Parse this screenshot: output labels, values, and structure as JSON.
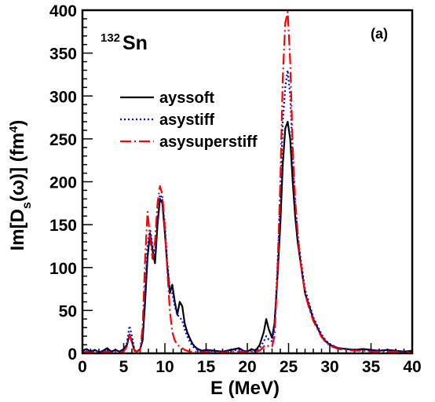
{
  "chart_data": {
    "type": "line",
    "panel_label": "(a)",
    "nucleus": {
      "mass_number": "132",
      "symbol": "Sn"
    },
    "xlabel": "E (MeV)",
    "ylabel_parts": {
      "prefix": "Im[D",
      "sub": "s",
      "mid": "(ω)] (fm",
      "sup": "4",
      "suffix": ")"
    },
    "xlim": [
      0,
      40
    ],
    "ylim": [
      0,
      400
    ],
    "xticks": [
      "0",
      "5",
      "10",
      "15",
      "20",
      "25",
      "30",
      "35",
      "40"
    ],
    "yticks": [
      "0",
      "50",
      "100",
      "150",
      "200",
      "250",
      "300",
      "350",
      "400"
    ],
    "legend_position": "upper-left",
    "series": [
      {
        "name": "ayssoft",
        "color": "#000000",
        "dash": "solid",
        "x": [
          0,
          0.5,
          1,
          1.5,
          2,
          2.5,
          3,
          3.5,
          4,
          4.5,
          5,
          5.4,
          5.7,
          6,
          6.3,
          6.6,
          7,
          7.3,
          7.6,
          7.9,
          8.2,
          8.5,
          8.8,
          9.1,
          9.4,
          9.7,
          10,
          10.3,
          10.6,
          10.9,
          11.2,
          11.5,
          11.8,
          12.1,
          12.4,
          12.7,
          13,
          13.3,
          13.6,
          14,
          14.5,
          15,
          16,
          17,
          18,
          19,
          19.5,
          20,
          20.5,
          21,
          21.5,
          22,
          22.3,
          22.6,
          23,
          23.3,
          23.6,
          24,
          24.3,
          24.6,
          24.9,
          25.2,
          25.5,
          25.8,
          26.1,
          26.4,
          26.7,
          27,
          27.5,
          28,
          28.5,
          29,
          29.5,
          30,
          31,
          32,
          33,
          34,
          35,
          36,
          37,
          38,
          39,
          40
        ],
        "y": [
          3,
          5,
          2,
          4,
          1,
          3,
          6,
          2,
          4,
          2,
          5,
          10,
          22,
          14,
          3,
          2,
          5,
          15,
          60,
          112,
          140,
          120,
          105,
          150,
          180,
          175,
          140,
          100,
          70,
          80,
          60,
          45,
          60,
          55,
          35,
          25,
          18,
          12,
          8,
          5,
          3,
          4,
          3,
          2,
          4,
          6,
          3,
          2,
          5,
          3,
          10,
          25,
          40,
          28,
          18,
          35,
          80,
          150,
          220,
          262,
          270,
          250,
          200,
          160,
          130,
          110,
          90,
          70,
          55,
          40,
          30,
          20,
          14,
          10,
          6,
          5,
          4,
          5,
          4,
          3,
          4,
          3,
          2,
          3
        ]
      },
      {
        "name": "asystiff",
        "color": "#0000ff",
        "dash": "dot",
        "x": [
          0,
          0.5,
          1,
          1.5,
          2,
          2.5,
          3,
          3.5,
          4,
          4.5,
          5,
          5.4,
          5.7,
          6,
          6.3,
          6.6,
          7,
          7.3,
          7.6,
          7.9,
          8.2,
          8.5,
          8.8,
          9.1,
          9.4,
          9.7,
          10,
          10.3,
          10.6,
          10.9,
          11.2,
          11.5,
          11.8,
          12.1,
          12.4,
          12.7,
          13,
          13.3,
          13.6,
          14,
          14.5,
          15,
          16,
          17,
          18,
          19,
          19.5,
          20,
          20.5,
          21,
          21.5,
          22,
          22.3,
          22.6,
          23,
          23.3,
          23.6,
          24,
          24.3,
          24.6,
          24.9,
          25.2,
          25.5,
          25.8,
          26.1,
          26.4,
          26.7,
          27,
          27.5,
          28,
          28.5,
          29,
          29.5,
          30,
          31,
          32,
          33,
          34,
          35,
          36,
          37,
          38,
          39,
          40
        ],
        "y": [
          2,
          4,
          1,
          3,
          2,
          2,
          4,
          1,
          3,
          2,
          4,
          12,
          32,
          20,
          4,
          2,
          4,
          20,
          75,
          125,
          145,
          125,
          115,
          160,
          185,
          180,
          150,
          105,
          75,
          70,
          55,
          45,
          42,
          38,
          28,
          20,
          14,
          9,
          6,
          4,
          2,
          3,
          2,
          2,
          3,
          4,
          3,
          2,
          3,
          2,
          6,
          14,
          20,
          16,
          14,
          30,
          90,
          180,
          270,
          310,
          330,
          300,
          230,
          175,
          140,
          115,
          95,
          75,
          58,
          42,
          32,
          22,
          15,
          11,
          6,
          5,
          4,
          4,
          3,
          3,
          3,
          2,
          2,
          2
        ]
      },
      {
        "name": "asysuperstiff",
        "color": "#ff0000",
        "dash": "dashdot",
        "x": [
          0,
          0.5,
          1,
          1.5,
          2,
          2.5,
          3,
          3.5,
          4,
          4.5,
          5,
          5.4,
          5.7,
          6,
          6.3,
          6.6,
          7,
          7.3,
          7.6,
          7.9,
          8.2,
          8.5,
          8.8,
          9.1,
          9.4,
          9.7,
          10,
          10.3,
          10.6,
          10.9,
          11.2,
          11.5,
          11.8,
          12.1,
          12.4,
          12.7,
          13,
          13.3,
          13.6,
          14,
          14.5,
          15,
          16,
          17,
          18,
          19,
          19.5,
          20,
          20.5,
          21,
          21.5,
          22,
          22.3,
          22.6,
          23,
          23.3,
          23.6,
          24,
          24.3,
          24.6,
          24.9,
          25.2,
          25.5,
          25.8,
          26.1,
          26.4,
          26.7,
          27,
          27.5,
          28,
          28.5,
          29,
          29.5,
          30,
          31,
          32,
          33,
          34,
          35,
          36,
          37,
          38,
          39,
          40
        ],
        "y": [
          1,
          2,
          1,
          2,
          1,
          1,
          2,
          1,
          2,
          1,
          2,
          8,
          22,
          12,
          3,
          2,
          4,
          30,
          110,
          165,
          135,
          110,
          130,
          175,
          195,
          185,
          145,
          95,
          50,
          25,
          15,
          10,
          8,
          6,
          4,
          3,
          2,
          2,
          2,
          2,
          1,
          2,
          1,
          1,
          2,
          2,
          2,
          1,
          2,
          2,
          3,
          8,
          10,
          8,
          8,
          20,
          80,
          200,
          320,
          385,
          398,
          340,
          240,
          180,
          140,
          110,
          90,
          70,
          52,
          38,
          28,
          19,
          13,
          9,
          5,
          4,
          3,
          3,
          2,
          2,
          2,
          2,
          1,
          1
        ]
      }
    ]
  }
}
